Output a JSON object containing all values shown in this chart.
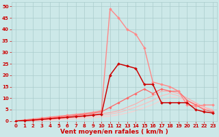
{
  "background_color": "#cce8e8",
  "grid_color": "#aacccc",
  "xlabel": "Vent moyen/en rafales ( km/h )",
  "xlabel_color": "#cc0000",
  "xlabel_fontsize": 6.5,
  "tick_color": "#cc0000",
  "tick_fontsize": 5.0,
  "ylim": [
    0,
    52
  ],
  "xlim": [
    -0.5,
    23.5
  ],
  "yticks": [
    0,
    5,
    10,
    15,
    20,
    25,
    30,
    35,
    40,
    45,
    50
  ],
  "xticks": [
    0,
    1,
    2,
    3,
    4,
    5,
    6,
    7,
    8,
    9,
    10,
    11,
    12,
    13,
    14,
    15,
    16,
    17,
    18,
    19,
    20,
    21,
    22,
    23
  ],
  "lines": [
    {
      "x": [
        0,
        1,
        2,
        3,
        4,
        5,
        6,
        7,
        8,
        9,
        10,
        11,
        12,
        13,
        14,
        15,
        16,
        17,
        18,
        19,
        20,
        21,
        22,
        23
      ],
      "y": [
        0,
        0.2,
        0.4,
        0.7,
        1.0,
        1.3,
        1.6,
        1.9,
        2.2,
        2.6,
        3.0,
        20,
        25,
        24,
        23,
        16,
        16,
        8,
        8,
        8,
        8,
        5,
        4,
        3.5
      ],
      "color": "#cc0000",
      "linewidth": 1.1,
      "marker": "D",
      "markersize": 2.0,
      "zorder": 5
    },
    {
      "x": [
        0,
        1,
        2,
        3,
        4,
        5,
        6,
        7,
        8,
        9,
        10,
        11,
        12,
        13,
        14,
        15,
        16,
        17,
        18,
        19,
        20,
        21,
        22,
        23
      ],
      "y": [
        0,
        0.5,
        0.9,
        1.3,
        1.7,
        2.1,
        2.5,
        2.9,
        3.3,
        3.8,
        4.5,
        49,
        45,
        40,
        38,
        32,
        17,
        16,
        15,
        13,
        7,
        6.5,
        7,
        7
      ],
      "color": "#ff8888",
      "linewidth": 1.0,
      "marker": "D",
      "markersize": 2.0,
      "zorder": 4
    },
    {
      "x": [
        0,
        1,
        2,
        3,
        4,
        5,
        6,
        7,
        8,
        9,
        10,
        11,
        12,
        13,
        14,
        15,
        16,
        17,
        18,
        19,
        20,
        21,
        22,
        23
      ],
      "y": [
        0,
        0.3,
        0.6,
        0.9,
        1.3,
        1.7,
        2.1,
        2.5,
        2.9,
        3.4,
        4.0,
        6.0,
        8.0,
        10,
        12,
        14,
        12,
        14,
        13,
        13,
        9,
        7,
        5,
        4
      ],
      "color": "#ff6666",
      "linewidth": 0.9,
      "marker": "D",
      "markersize": 1.8,
      "zorder": 3
    },
    {
      "x": [
        0,
        1,
        2,
        3,
        4,
        5,
        6,
        7,
        8,
        9,
        10,
        11,
        12,
        13,
        14,
        15,
        16,
        17,
        18,
        19,
        20,
        21,
        22,
        23
      ],
      "y": [
        0,
        0.15,
        0.3,
        0.6,
        0.9,
        1.2,
        1.6,
        2.0,
        2.4,
        2.8,
        3.2,
        3.7,
        4.5,
        6.0,
        7.5,
        9.5,
        11,
        13,
        13,
        12,
        10,
        8,
        6,
        4.5
      ],
      "color": "#ffaaaa",
      "linewidth": 0.8,
      "marker": null,
      "markersize": 0,
      "zorder": 2
    },
    {
      "x": [
        0,
        1,
        2,
        3,
        4,
        5,
        6,
        7,
        8,
        9,
        10,
        11,
        12,
        13,
        14,
        15,
        16,
        17,
        18,
        19,
        20,
        21,
        22,
        23
      ],
      "y": [
        0,
        0.1,
        0.2,
        0.4,
        0.6,
        0.9,
        1.2,
        1.5,
        1.8,
        2.2,
        2.6,
        3.0,
        3.7,
        4.8,
        6.0,
        7.5,
        9.0,
        11,
        12,
        11,
        9,
        7.5,
        6,
        5
      ],
      "color": "#ffbbbb",
      "linewidth": 0.8,
      "marker": null,
      "markersize": 0,
      "zorder": 2
    },
    {
      "x": [
        0,
        1,
        2,
        3,
        4,
        5,
        6,
        7,
        8,
        9,
        10,
        11,
        12,
        13,
        14,
        15,
        16,
        17,
        18,
        19,
        20,
        21,
        22,
        23
      ],
      "y": [
        0,
        0.05,
        0.1,
        0.2,
        0.3,
        0.5,
        0.7,
        0.9,
        1.2,
        1.5,
        1.8,
        2.1,
        2.7,
        3.5,
        4.5,
        5.8,
        7.2,
        9.0,
        10.5,
        10,
        8.5,
        7,
        5.5,
        4.5
      ],
      "color": "#ffcccc",
      "linewidth": 0.8,
      "marker": null,
      "markersize": 0,
      "zorder": 1
    }
  ]
}
